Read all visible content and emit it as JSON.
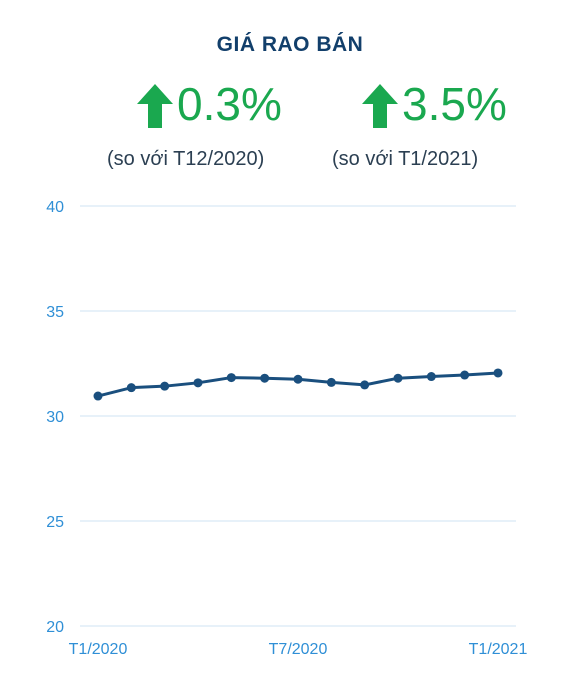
{
  "header": {
    "title": "GIÁ RAO BÁN"
  },
  "stats": [
    {
      "value": "0.3%",
      "caption": "(so với T12/2020)",
      "direction": "up-arrow-icon"
    },
    {
      "value": "3.5%",
      "caption": "(so với T1/2021)",
      "direction": "up-arrow-icon"
    }
  ],
  "colors": {
    "title": "#123f6b",
    "accent_green": "#1aa84f",
    "line": "#1a4f7e",
    "tick": "#2f8fd6",
    "grid": "#cfe3f3"
  },
  "chart_data": {
    "type": "line",
    "title": "",
    "xlabel": "",
    "ylabel": "",
    "ylim": [
      20,
      40
    ],
    "yticks": [
      20,
      25,
      30,
      35,
      40
    ],
    "grid": true,
    "x": [
      "T1/2020",
      "T2/2020",
      "T3/2020",
      "T4/2020",
      "T5/2020",
      "T6/2020",
      "T7/2020",
      "T8/2020",
      "T9/2020",
      "T10/2020",
      "T11/2020",
      "T12/2020",
      "T1/2021"
    ],
    "xtick_labels": [
      {
        "index": 0,
        "label": "T1/2020"
      },
      {
        "index": 6,
        "label": "T7/2020"
      },
      {
        "index": 12,
        "label": "T1/2021"
      }
    ],
    "series": [
      {
        "values": [
          30.95,
          31.35,
          31.42,
          31.58,
          31.83,
          31.8,
          31.75,
          31.6,
          31.48,
          31.8,
          31.88,
          31.95,
          32.05
        ]
      }
    ]
  }
}
